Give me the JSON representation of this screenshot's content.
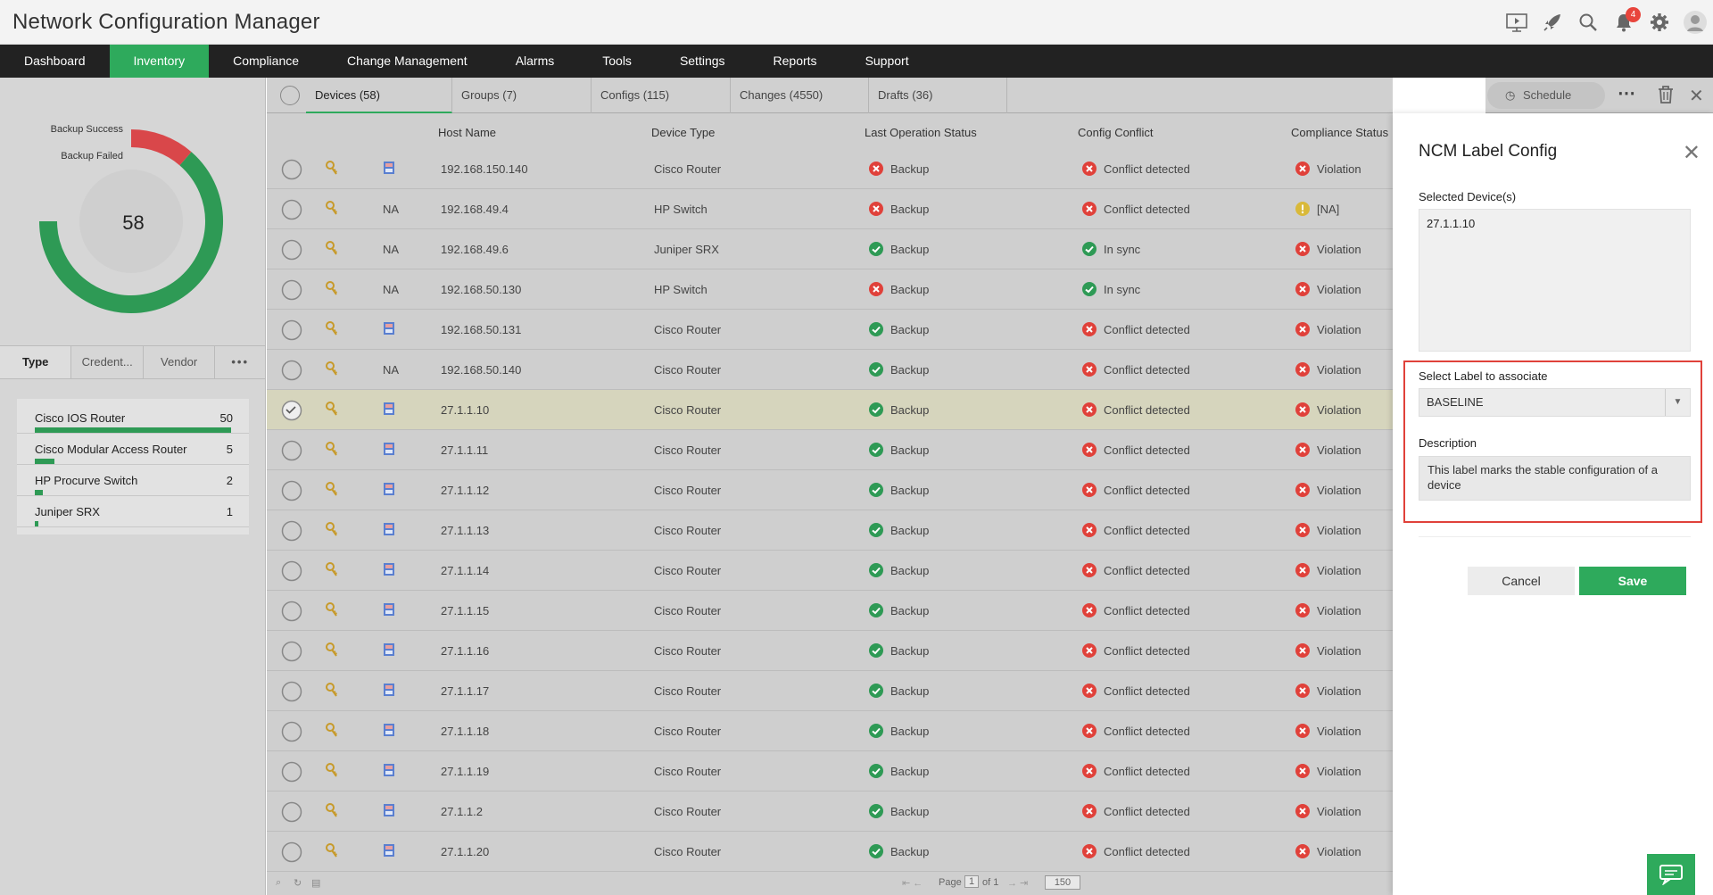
{
  "app": {
    "title": "Network Configuration Manager",
    "notification_count": "4"
  },
  "nav": [
    "Dashboard",
    "Inventory",
    "Compliance",
    "Change Management",
    "Alarms",
    "Tools",
    "Settings",
    "Reports",
    "Support"
  ],
  "nav_active": "Inventory",
  "summary": {
    "total": "58",
    "backup_success_label": "Backup Success",
    "backup_failed_label": "Backup Failed",
    "backup_success": 54,
    "backup_failed": 4,
    "success_color": "#2e9a55",
    "failed_color": "#d9474a"
  },
  "left_tabs": [
    "Type",
    "Credent...",
    "Vendor"
  ],
  "device_types": [
    {
      "name": "Cisco IOS Router",
      "count": "50",
      "fraction": 1.0
    },
    {
      "name": "Cisco Modular Access Router",
      "count": "5",
      "fraction": 0.1
    },
    {
      "name": "HP Procurve Switch",
      "count": "2",
      "fraction": 0.04
    },
    {
      "name": "Juniper SRX",
      "count": "1",
      "fraction": 0.02
    }
  ],
  "tabs": [
    "Devices (58)",
    "Groups (7)",
    "Configs (115)",
    "Changes (4550)",
    "Drafts (36)"
  ],
  "schedule_label": "Schedule",
  "columns": {
    "host": "Host Name",
    "type": "Device Type",
    "last_op": "Last Operation Status",
    "conflict": "Config Conflict",
    "compliance": "Compliance Status"
  },
  "rows": [
    {
      "na": "",
      "host": "192.168.150.140",
      "type": "Cisco Router",
      "op": "fail",
      "op_text": "Backup",
      "cf": "fail",
      "cf_text": "Conflict detected",
      "cp": "fail",
      "cp_text": "Violation",
      "selected": false
    },
    {
      "na": "NA",
      "host": "192.168.49.4",
      "type": "HP Switch",
      "op": "fail",
      "op_text": "Backup",
      "cf": "fail",
      "cf_text": "Conflict detected",
      "cp": "warn",
      "cp_text": "[NA]",
      "selected": false
    },
    {
      "na": "NA",
      "host": "192.168.49.6",
      "type": "Juniper SRX",
      "op": "ok",
      "op_text": "Backup",
      "cf": "ok",
      "cf_text": "In sync",
      "cp": "fail",
      "cp_text": "Violation",
      "selected": false
    },
    {
      "na": "NA",
      "host": "192.168.50.130",
      "type": "HP Switch",
      "op": "fail",
      "op_text": "Backup",
      "cf": "ok",
      "cf_text": "In sync",
      "cp": "fail",
      "cp_text": "Violation",
      "selected": false
    },
    {
      "na": "",
      "host": "192.168.50.131",
      "type": "Cisco Router",
      "op": "ok",
      "op_text": "Backup",
      "cf": "fail",
      "cf_text": "Conflict detected",
      "cp": "fail",
      "cp_text": "Violation",
      "selected": false
    },
    {
      "na": "NA",
      "host": "192.168.50.140",
      "type": "Cisco Router",
      "op": "ok",
      "op_text": "Backup",
      "cf": "fail",
      "cf_text": "Conflict detected",
      "cp": "fail",
      "cp_text": "Violation",
      "selected": false
    },
    {
      "na": "",
      "host": "27.1.1.10",
      "type": "Cisco Router",
      "op": "ok",
      "op_text": "Backup",
      "cf": "fail",
      "cf_text": "Conflict detected",
      "cp": "fail",
      "cp_text": "Violation",
      "selected": true
    },
    {
      "na": "",
      "host": "27.1.1.11",
      "type": "Cisco Router",
      "op": "ok",
      "op_text": "Backup",
      "cf": "fail",
      "cf_text": "Conflict detected",
      "cp": "fail",
      "cp_text": "Violation",
      "selected": false
    },
    {
      "na": "",
      "host": "27.1.1.12",
      "type": "Cisco Router",
      "op": "ok",
      "op_text": "Backup",
      "cf": "fail",
      "cf_text": "Conflict detected",
      "cp": "fail",
      "cp_text": "Violation",
      "selected": false
    },
    {
      "na": "",
      "host": "27.1.1.13",
      "type": "Cisco Router",
      "op": "ok",
      "op_text": "Backup",
      "cf": "fail",
      "cf_text": "Conflict detected",
      "cp": "fail",
      "cp_text": "Violation",
      "selected": false
    },
    {
      "na": "",
      "host": "27.1.1.14",
      "type": "Cisco Router",
      "op": "ok",
      "op_text": "Backup",
      "cf": "fail",
      "cf_text": "Conflict detected",
      "cp": "fail",
      "cp_text": "Violation",
      "selected": false
    },
    {
      "na": "",
      "host": "27.1.1.15",
      "type": "Cisco Router",
      "op": "ok",
      "op_text": "Backup",
      "cf": "fail",
      "cf_text": "Conflict detected",
      "cp": "fail",
      "cp_text": "Violation",
      "selected": false
    },
    {
      "na": "",
      "host": "27.1.1.16",
      "type": "Cisco Router",
      "op": "ok",
      "op_text": "Backup",
      "cf": "fail",
      "cf_text": "Conflict detected",
      "cp": "fail",
      "cp_text": "Violation",
      "selected": false
    },
    {
      "na": "",
      "host": "27.1.1.17",
      "type": "Cisco Router",
      "op": "ok",
      "op_text": "Backup",
      "cf": "fail",
      "cf_text": "Conflict detected",
      "cp": "fail",
      "cp_text": "Violation",
      "selected": false
    },
    {
      "na": "",
      "host": "27.1.1.18",
      "type": "Cisco Router",
      "op": "ok",
      "op_text": "Backup",
      "cf": "fail",
      "cf_text": "Conflict detected",
      "cp": "fail",
      "cp_text": "Violation",
      "selected": false
    },
    {
      "na": "",
      "host": "27.1.1.19",
      "type": "Cisco Router",
      "op": "ok",
      "op_text": "Backup",
      "cf": "fail",
      "cf_text": "Conflict detected",
      "cp": "fail",
      "cp_text": "Violation",
      "selected": false
    },
    {
      "na": "",
      "host": "27.1.1.2",
      "type": "Cisco Router",
      "op": "ok",
      "op_text": "Backup",
      "cf": "fail",
      "cf_text": "Conflict detected",
      "cp": "fail",
      "cp_text": "Violation",
      "selected": false
    },
    {
      "na": "",
      "host": "27.1.1.20",
      "type": "Cisco Router",
      "op": "ok",
      "op_text": "Backup",
      "cf": "fail",
      "cf_text": "Conflict detected",
      "cp": "fail",
      "cp_text": "Violation",
      "selected": false
    }
  ],
  "pager": {
    "page_label": "Page",
    "page": "1",
    "of_label": "of 1",
    "per_page": "150"
  },
  "panel": {
    "title": "NCM Label Config",
    "selected_label": "Selected Device(s)",
    "selected_value": "27.1.1.10",
    "label_select_label": "Select Label to associate",
    "label_value": "BASELINE",
    "description_label": "Description",
    "description_value": "This label marks the stable configuration of a device",
    "cancel": "Cancel",
    "save": "Save"
  },
  "colors": {
    "accent": "#2eaa5c",
    "error": "#e0413a",
    "ok": "#2e9a55",
    "warn": "#d9b93a"
  }
}
